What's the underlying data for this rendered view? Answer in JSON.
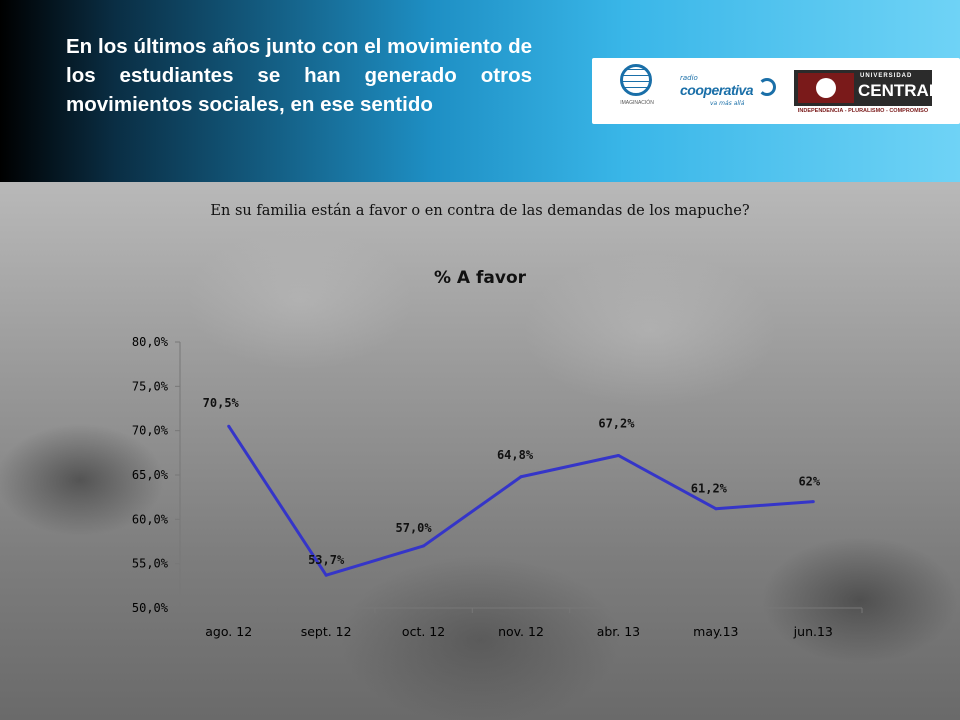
{
  "header": {
    "title": "En los últimos años junto con el movimiento de los estudiantes se han generado otros movimientos sociales, en ese sentido",
    "logos": {
      "imaginacion": {
        "icon": "globe-icon",
        "text": "IMAGINACIÓN"
      },
      "cooperativa": {
        "icon": "radio-swirl-icon",
        "radio": "radio",
        "name": "cooperativa",
        "tagline": "va más allá"
      },
      "central": {
        "university": "UNIVERSIDAD",
        "name": "CENTRAL",
        "motto": "INDEPENDENCIA - PLURALISMO - COMPROMISO"
      }
    }
  },
  "question": "En su familia están a favor o en contra de las demandas de los mapuche?",
  "colors": {
    "line": "#3535c8",
    "header_dark": "#000000",
    "header_light": "#6fd3f6"
  },
  "chart_data": {
    "type": "line",
    "title": "% A favor",
    "categories": [
      "ago. 12",
      "sept. 12",
      "oct. 12",
      "nov. 12",
      "abr. 13",
      "may.13",
      "jun.13"
    ],
    "series": [
      {
        "values": [
          70.5,
          53.7,
          57.0,
          64.8,
          67.2,
          61.2,
          62
        ]
      }
    ],
    "data_labels": [
      "70,5%",
      "53,7%",
      "57,0%",
      "64,8%",
      "67,2%",
      "61,2%",
      "62%"
    ],
    "ylim": [
      50,
      80
    ],
    "yticks": [
      50,
      55,
      60,
      65,
      70,
      75,
      80
    ],
    "ytick_labels": [
      "50,0%",
      "55,0%",
      "60,0%",
      "65,0%",
      "70,0%",
      "75,0%",
      "80,0%"
    ],
    "xlabel": "",
    "ylabel": "",
    "grid": false,
    "legend": "none"
  }
}
